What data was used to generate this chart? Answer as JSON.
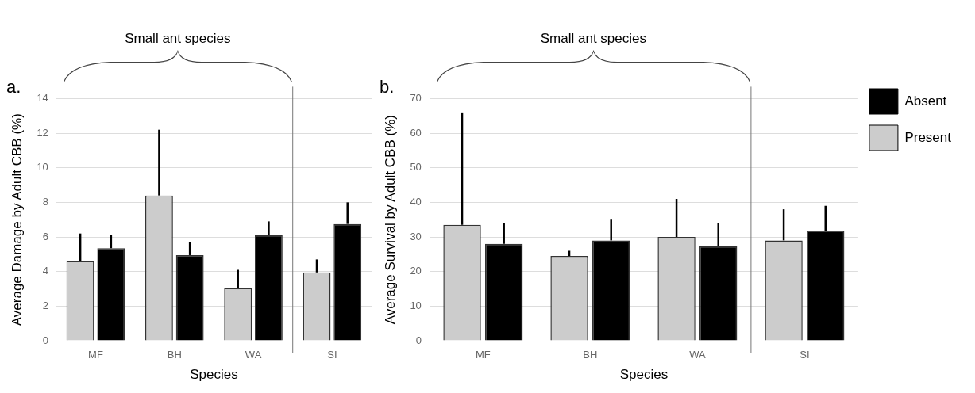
{
  "chart_data": [
    {
      "type": "bar",
      "title": "a.",
      "xlabel": "Species",
      "ylabel": "Average Damage by Adult CBB (%)",
      "annotations": [
        "Small ant species"
      ],
      "categories": [
        "MF",
        "BH",
        "WA",
        "SI"
      ],
      "series": [
        {
          "color": "#cccccc",
          "values": [
            4.6,
            8.4,
            3.05,
            3.95
          ],
          "errors": [
            [
              4.6,
              6.2
            ],
            [
              8.4,
              12.2
            ],
            [
              3.05,
              4.1
            ],
            [
              3.95,
              4.7
            ]
          ]
        },
        {
          "color": "#000000",
          "values": [
            5.35,
            4.95,
            6.1,
            6.75
          ],
          "errors": [
            [
              5.35,
              6.1
            ],
            [
              4.95,
              5.7
            ],
            [
              6.1,
              6.9
            ],
            [
              6.75,
              8.0
            ]
          ]
        }
      ],
      "ref_lines": [
        {
          "axis": "x",
          "value": "SI",
          "color": "#777777"
        }
      ],
      "ylim": [
        0,
        14
      ],
      "yticks": [
        0,
        2,
        4,
        6,
        8,
        10,
        12,
        14
      ],
      "grid": "y",
      "legend": false
    },
    {
      "type": "bar",
      "title": "b.",
      "xlabel": "Species",
      "ylabel": "Average Survival by Adult CBB (%)",
      "annotations": [
        "Small ant species"
      ],
      "categories": [
        "MF",
        "BH",
        "WA",
        "SI"
      ],
      "series": [
        {
          "name": "Present",
          "color": "#cccccc",
          "values": [
            33.5,
            24.5,
            30,
            29
          ],
          "errors": [
            [
              33.5,
              66
            ],
            [
              24.5,
              26
            ],
            [
              30,
              41
            ],
            [
              29,
              38
            ]
          ]
        },
        {
          "name": "Absent",
          "color": "#000000",
          "values": [
            28,
            29,
            27.3,
            31.8
          ],
          "errors": [
            [
              28,
              34
            ],
            [
              29,
              35
            ],
            [
              27.3,
              34
            ],
            [
              31.8,
              39
            ]
          ]
        }
      ],
      "ref_lines": [
        {
          "axis": "x",
          "value": "SI",
          "color": "#777777"
        }
      ],
      "ylim": [
        0,
        70
      ],
      "yticks": [
        0,
        10,
        20,
        30,
        40,
        50,
        60,
        70
      ],
      "grid": "y",
      "legend": "right"
    }
  ]
}
